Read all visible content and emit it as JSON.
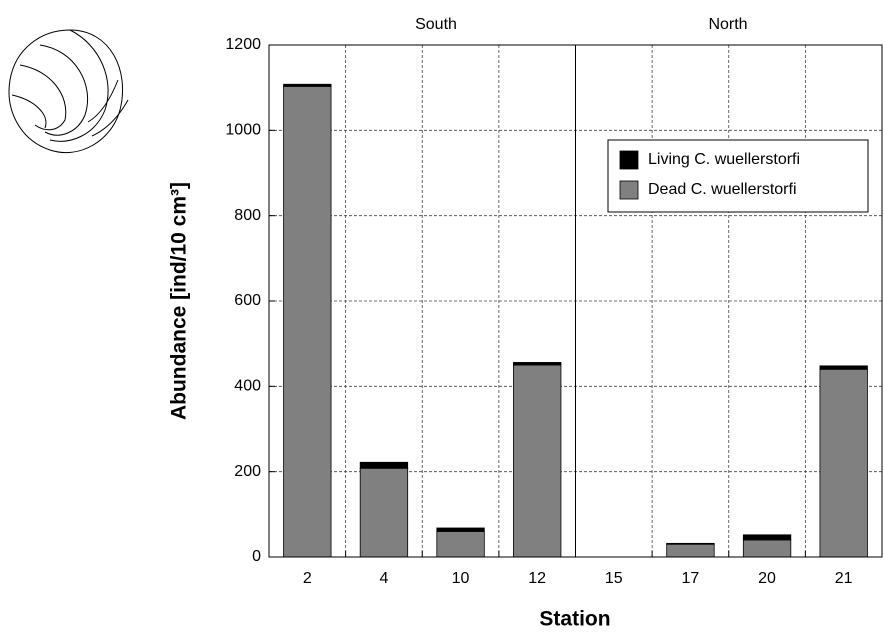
{
  "chart_data": {
    "type": "stacked_bar",
    "y_label": "Abundance [ind/10 cm³]",
    "x_label": "Station",
    "group_labels": [
      "South",
      "North"
    ],
    "categories": [
      "2",
      "4",
      "10",
      "12",
      "15",
      "17",
      "20",
      "21"
    ],
    "series": [
      {
        "name": "Dead  C. wuellerstorfi",
        "color": "#808080",
        "values": [
          1103,
          208,
          60,
          450,
          0,
          30,
          40,
          440
        ]
      },
      {
        "name": "Living C. wuellerstorfi",
        "color": "#000000",
        "values": [
          5,
          14,
          8,
          6,
          0,
          2,
          12,
          8
        ]
      }
    ],
    "ylim": [
      0,
      1200
    ],
    "yticks": [
      0,
      200,
      400,
      600,
      800,
      1000,
      1200
    ],
    "grid": true
  }
}
